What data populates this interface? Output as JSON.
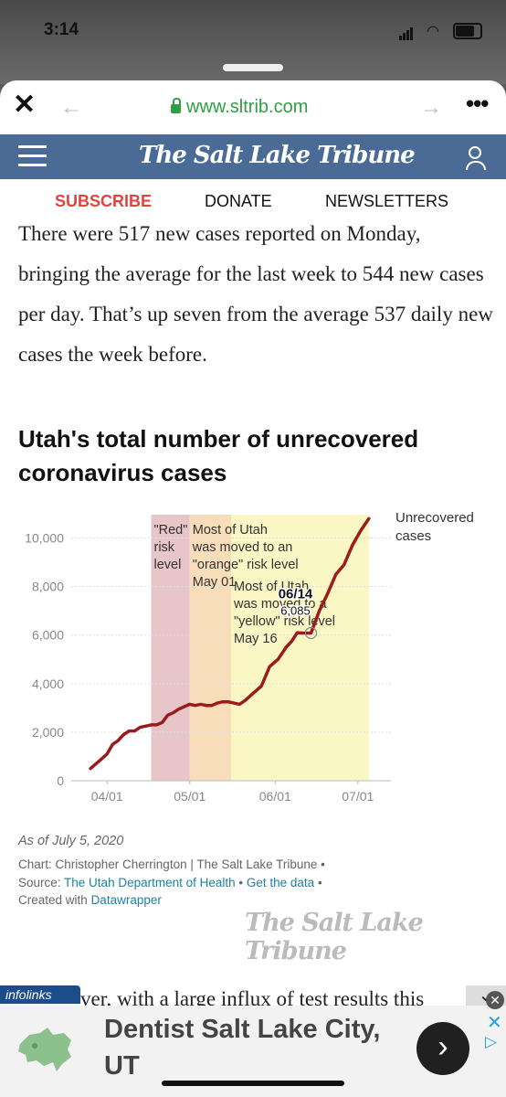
{
  "status": {
    "time": "3:14"
  },
  "browser": {
    "url": "www.sltrib.com"
  },
  "masthead": {
    "logo": "The Salt Lake Tribune"
  },
  "subnav": {
    "subscribe": "SUBSCRIBE",
    "donate": "DONATE",
    "newsletters": "NEWSLETTERS"
  },
  "article": {
    "paragraph": "There were 517 new cases reported on Monday, bringing the average for the last week to 544 new cases per day. That’s up seven from the average 537 daily new cases the week before.",
    "partial_next": "ver, with a large influx of test results this"
  },
  "chart": {
    "title": "Utah's total number of unrecovered coronavirus cases",
    "asof": "As of July 5, 2020",
    "credit": "Chart: Christopher Cherrington | The Salt Lake Tribune •",
    "source_prefix": "Source:",
    "source_link": "The Utah Department of Health",
    "data_link": "Get the data",
    "created_prefix": "Created with",
    "created_link": "Datawrapper",
    "watermark": "The Salt Lake Tribune"
  },
  "chart_data": {
    "type": "line",
    "title": "Utah's total number of unrecovered coronavirus cases",
    "x_tick_labels": [
      "04/01",
      "05/01",
      "06/01",
      "07/01"
    ],
    "y_tick_labels": [
      "0",
      "2,000",
      "4,000",
      "6,000",
      "8,000",
      "10,000"
    ],
    "ylim": [
      0,
      11000
    ],
    "xlim": [
      "2020-03-19",
      "2020-07-13"
    ],
    "series": [
      {
        "name": "Unrecovered cases",
        "color": "#9b1c1c",
        "x": [
          "2020-03-26",
          "2020-03-29",
          "2020-04-01",
          "2020-04-03",
          "2020-04-05",
          "2020-04-07",
          "2020-04-09",
          "2020-04-11",
          "2020-04-13",
          "2020-04-15",
          "2020-04-17",
          "2020-04-19",
          "2020-04-21",
          "2020-04-23",
          "2020-04-25",
          "2020-04-27",
          "2020-04-29",
          "2020-05-01",
          "2020-05-03",
          "2020-05-05",
          "2020-05-07",
          "2020-05-09",
          "2020-05-11",
          "2020-05-13",
          "2020-05-15",
          "2020-05-17",
          "2020-05-19",
          "2020-05-21",
          "2020-05-24",
          "2020-05-27",
          "2020-05-30",
          "2020-06-02",
          "2020-06-05",
          "2020-06-07",
          "2020-06-09",
          "2020-06-11",
          "2020-06-14",
          "2020-06-17",
          "2020-06-20",
          "2020-06-23",
          "2020-06-26",
          "2020-06-29",
          "2020-07-02",
          "2020-07-05"
        ],
        "y": [
          500,
          800,
          1100,
          1500,
          1650,
          1900,
          2050,
          2050,
          2200,
          2250,
          2300,
          2300,
          2400,
          2700,
          2800,
          2950,
          3050,
          3150,
          3100,
          3150,
          3100,
          3100,
          3200,
          3250,
          3250,
          3200,
          3150,
          3300,
          3600,
          3900,
          4700,
          5000,
          5500,
          5750,
          6100,
          6085,
          6085,
          7000,
          7700,
          8500,
          8900,
          9700,
          10300,
          10800
        ]
      }
    ],
    "annotations": [
      {
        "text": "\"Red\" risk level",
        "range": [
          "2020-04-17",
          "2020-05-01"
        ],
        "color": "#e8c5c8"
      },
      {
        "text": "Most of Utah was moved to an \"orange\" risk level May 01",
        "range": [
          "2020-05-01",
          "2020-05-16"
        ],
        "color": "#f7ddb9"
      },
      {
        "text": "Most of Utah was moved to a \"yellow\" risk level May 16",
        "range": [
          "2020-05-16",
          "2020-07-05"
        ],
        "color": "#fbf7c5"
      }
    ],
    "highlight": {
      "date": "06/14",
      "value": "6,085"
    }
  },
  "ad": {
    "badge": "infolinks",
    "text": "Dentist Salt Lake City, UT"
  }
}
